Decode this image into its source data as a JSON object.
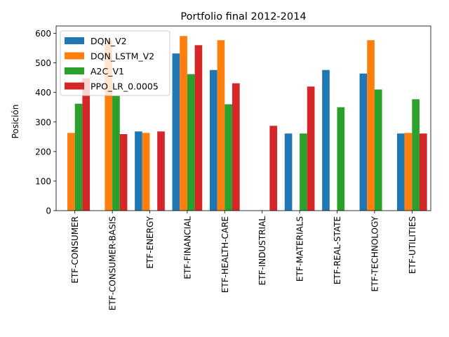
{
  "chart_data": {
    "type": "bar",
    "title": "Portfolio final 2012-2014",
    "xlabel": "",
    "ylabel": "Posición",
    "ylim": [
      0,
      625
    ],
    "yticks": [
      0,
      100,
      200,
      300,
      400,
      500,
      600
    ],
    "grid": false,
    "legend_position": "top-left",
    "categories": [
      "ETF-CONSUMER",
      "ETF-CONSUMER-BASIS",
      "ETF-ENERGY",
      "ETF-FINANCIAL",
      "ETF-HEALTH-CARE",
      "ETF-INDUSTRIAL",
      "ETF-MATERIALS",
      "ETF-REAL-STATE",
      "ETF-TECHNOLOGY",
      "ETF-UTILITIES"
    ],
    "series": [
      {
        "name": "DQN_V2",
        "color": "#1f77b4",
        "values": [
          0,
          0,
          268,
          532,
          476,
          0,
          261,
          476,
          464,
          261
        ]
      },
      {
        "name": "DQN_LSTM_V2",
        "color": "#ff7f0e",
        "values": [
          263,
          575,
          263,
          591,
          577,
          0,
          0,
          0,
          577,
          263
        ]
      },
      {
        "name": "A2C_V1",
        "color": "#2ca02c",
        "values": [
          362,
          388,
          0,
          462,
          360,
          0,
          261,
          350,
          410,
          377
        ]
      },
      {
        "name": "PPO_LR_0.0005",
        "color": "#d62728",
        "values": [
          448,
          259,
          268,
          560,
          431,
          287,
          420,
          0,
          0,
          261
        ]
      }
    ]
  }
}
